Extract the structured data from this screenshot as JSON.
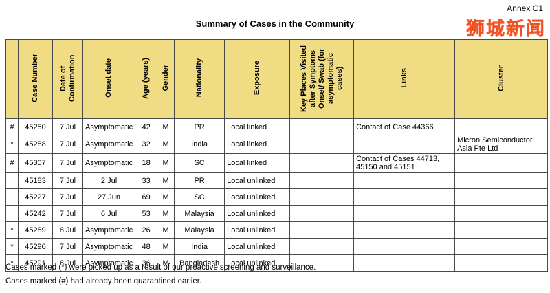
{
  "page": {
    "annex_label": "Annex C1",
    "title": "Summary of Cases in the Community",
    "logo_text": "狮城新闻",
    "footnotes": [
      "Cases marked (*) were picked up as a result of our proactive screening and surveillance.",
      "Cases marked (#) had already been quarantined earlier."
    ],
    "accent_color": "#f05223",
    "header_bg_color": "#f0dc82"
  },
  "table": {
    "headers": [
      "",
      "Case Number",
      "Date of Confirmation",
      "Onset date",
      "Age (years)",
      "Gender",
      "Nationality",
      "Exposure",
      "Key Places Visited after Symptoms Onset/ Swab (for asymptomatic cases)",
      "Links",
      "Cluster"
    ],
    "rows": [
      {
        "marker": "#",
        "case_number": "45250",
        "date_confirmation": "7 Jul",
        "onset_date": "Asymptomatic",
        "age": "42",
        "gender": "M",
        "nationality": "PR",
        "exposure": "Local linked",
        "key_places": "",
        "links": "Contact of Case 44366",
        "cluster": ""
      },
      {
        "marker": "*",
        "case_number": "45288",
        "date_confirmation": "7 Jul",
        "onset_date": "Asymptomatic",
        "age": "32",
        "gender": "M",
        "nationality": "India",
        "exposure": "Local linked",
        "key_places": "",
        "links": "",
        "cluster": "Micron Semiconductor Asia Pte Ltd"
      },
      {
        "marker": "#",
        "case_number": "45307",
        "date_confirmation": "7 Jul",
        "onset_date": "Asymptomatic",
        "age": "18",
        "gender": "M",
        "nationality": "SC",
        "exposure": "Local linked",
        "key_places": "",
        "links": "Contact of Cases 44713, 45150 and 45151",
        "cluster": ""
      },
      {
        "marker": "",
        "case_number": "45183",
        "date_confirmation": "7 Jul",
        "onset_date": "2 Jul",
        "age": "33",
        "gender": "M",
        "nationality": "PR",
        "exposure": "Local unlinked",
        "key_places": "",
        "links": "",
        "cluster": ""
      },
      {
        "marker": "",
        "case_number": "45227",
        "date_confirmation": "7 Jul",
        "onset_date": "27 Jun",
        "age": "69",
        "gender": "M",
        "nationality": "SC",
        "exposure": "Local unlinked",
        "key_places": "",
        "links": "",
        "cluster": ""
      },
      {
        "marker": "",
        "case_number": "45242",
        "date_confirmation": "7 Jul",
        "onset_date": "6 Jul",
        "age": "53",
        "gender": "M",
        "nationality": "Malaysia",
        "exposure": "Local unlinked",
        "key_places": "",
        "links": "",
        "cluster": ""
      },
      {
        "marker": "*",
        "case_number": "45289",
        "date_confirmation": "8 Jul",
        "onset_date": "Asymptomatic",
        "age": "26",
        "gender": "M",
        "nationality": "Malaysia",
        "exposure": "Local unlinked",
        "key_places": "",
        "links": "",
        "cluster": ""
      },
      {
        "marker": "*",
        "case_number": "45290",
        "date_confirmation": "7 Jul",
        "onset_date": "Asymptomatic",
        "age": "48",
        "gender": "M",
        "nationality": "India",
        "exposure": "Local unlinked",
        "key_places": "",
        "links": "",
        "cluster": ""
      },
      {
        "marker": "*",
        "case_number": "45291",
        "date_confirmation": "8 Jul",
        "onset_date": "Asymptomatic",
        "age": "36",
        "gender": "M",
        "nationality": "Bangladesh",
        "exposure": "Local unlinked",
        "key_places": "",
        "links": "",
        "cluster": ""
      }
    ]
  }
}
